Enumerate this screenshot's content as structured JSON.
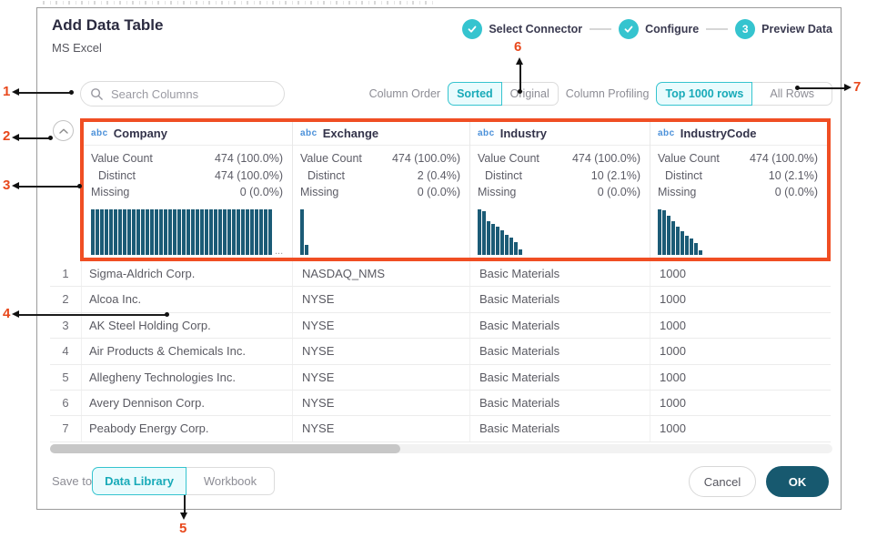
{
  "dialog": {
    "title": "Add Data Table",
    "subtitle": "MS Excel",
    "stepper": [
      {
        "label": "Select Connector",
        "state": "done"
      },
      {
        "label": "Configure",
        "state": "done"
      },
      {
        "label": "Preview Data",
        "state": "current",
        "number": "3"
      }
    ],
    "search": {
      "placeholder": "Search Columns"
    },
    "column_order": {
      "label": "Column Order",
      "options": [
        "Sorted",
        "Original"
      ],
      "selected": "Sorted"
    },
    "column_profiling": {
      "label": "Column Profiling",
      "options": [
        "Top 1000 rows",
        "All Rows"
      ],
      "selected": "Top 1000 rows"
    },
    "save_to": {
      "label": "Save to",
      "options": [
        "Data Library",
        "Workbook"
      ],
      "selected": "Data Library"
    },
    "buttons": {
      "cancel": "Cancel",
      "ok": "OK"
    }
  },
  "profiling": {
    "stat_labels": [
      "Value Count",
      "Distinct",
      "Missing"
    ],
    "columns": [
      {
        "type": "abc",
        "name": "Company",
        "value_count": "474 (100.0%)",
        "distinct": "474 (100.0%)",
        "missing": "0 (0.0%)",
        "ellipsis": true,
        "histogram": [
          1,
          1,
          1,
          1,
          1,
          1,
          1,
          1,
          1,
          1,
          1,
          1,
          1,
          1,
          1,
          1,
          1,
          1,
          1,
          1,
          1,
          1,
          1,
          1,
          1,
          1,
          1,
          1,
          1,
          1,
          1,
          1,
          1,
          1,
          1,
          1,
          1,
          1,
          1,
          1
        ]
      },
      {
        "type": "abc",
        "name": "Exchange",
        "value_count": "474 (100.0%)",
        "distinct": "2 (0.4%)",
        "missing": "0 (0.0%)",
        "ellipsis": false,
        "histogram": [
          1,
          0.22
        ]
      },
      {
        "type": "abc",
        "name": "Industry",
        "value_count": "474 (100.0%)",
        "distinct": "10 (2.1%)",
        "missing": "0 (0.0%)",
        "ellipsis": false,
        "histogram": [
          1,
          0.96,
          0.74,
          0.68,
          0.62,
          0.54,
          0.44,
          0.38,
          0.28,
          0.12
        ]
      },
      {
        "type": "abc",
        "name": "IndustryCode",
        "value_count": "474 (100.0%)",
        "distinct": "10 (2.1%)",
        "missing": "0 (0.0%)",
        "ellipsis": false,
        "histogram": [
          1,
          0.97,
          0.86,
          0.74,
          0.62,
          0.52,
          0.42,
          0.36,
          0.26,
          0.1
        ]
      }
    ]
  },
  "table": {
    "rows": [
      {
        "num": "1",
        "company": "Sigma-Aldrich Corp.",
        "exchange": "NASDAQ_NMS",
        "industry": "Basic Materials",
        "industry_code": "1000"
      },
      {
        "num": "2",
        "company": "Alcoa Inc.",
        "exchange": "NYSE",
        "industry": "Basic Materials",
        "industry_code": "1000"
      },
      {
        "num": "3",
        "company": "AK Steel Holding Corp.",
        "exchange": "NYSE",
        "industry": "Basic Materials",
        "industry_code": "1000"
      },
      {
        "num": "4",
        "company": "Air Products & Chemicals Inc.",
        "exchange": "NYSE",
        "industry": "Basic Materials",
        "industry_code": "1000"
      },
      {
        "num": "5",
        "company": "Allegheny Technologies Inc.",
        "exchange": "NYSE",
        "industry": "Basic Materials",
        "industry_code": "1000"
      },
      {
        "num": "6",
        "company": "Avery Dennison Corp.",
        "exchange": "NYSE",
        "industry": "Basic Materials",
        "industry_code": "1000"
      },
      {
        "num": "7",
        "company": "Peabody Energy Corp.",
        "exchange": "NYSE",
        "industry": "Basic Materials",
        "industry_code": "1000"
      }
    ]
  },
  "callouts": [
    "1",
    "2",
    "3",
    "4",
    "5",
    "6",
    "7"
  ],
  "colors": {
    "accent_orange": "#f04e23",
    "teal": "#35c4cf",
    "teal_text": "#18aab8",
    "dark_teal_button": "#17596f",
    "histogram_bar": "#1b5b76",
    "abc_blue": "#4a90d9"
  }
}
